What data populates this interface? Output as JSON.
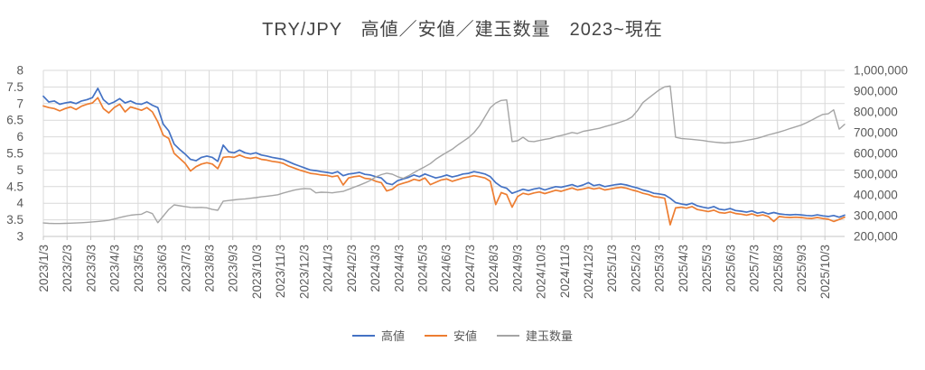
{
  "title": "TRY/JPY　高値／安値／建玉数量　2023~現在",
  "legend": {
    "items": [
      {
        "key": "high",
        "label": "高値",
        "color": "#4472C4"
      },
      {
        "key": "low",
        "label": "安値",
        "color": "#ED7D31"
      },
      {
        "key": "open-interest",
        "label": "建玉数量",
        "color": "#A5A5A5"
      }
    ]
  },
  "colors": {
    "grid": "#D9D9D9",
    "axis_line": "#C6C6C6",
    "axis_text": "#595959",
    "title_text": "#444444",
    "background": "#FFFFFF"
  },
  "chart_data": {
    "type": "line",
    "title": "TRY/JPY　高値／安値／建玉数量　2023~現在",
    "grid": true,
    "legend_position": "bottom",
    "x_axis": {
      "interval": "weekly",
      "start_label": "2023/1/3",
      "labels": [
        "2023/1/3",
        "2023/2/3",
        "2023/3/3",
        "2023/4/3",
        "2023/5/3",
        "2023/6/3",
        "2023/7/3",
        "2023/8/3",
        "2023/9/3",
        "2023/10/3",
        "2023/11/3",
        "2023/12/3",
        "2024/1/3",
        "2024/2/3",
        "2024/3/3",
        "2024/4/3",
        "2024/5/3",
        "2024/6/3",
        "2024/7/3",
        "2024/8/3",
        "2024/9/3",
        "2024/10/3",
        "2024/11/3",
        "2024/12/3",
        "2025/1/3",
        "2025/2/3",
        "2025/3/3",
        "2025/4/3",
        "2025/5/3",
        "2025/6/3",
        "2025/7/3",
        "2025/8/3",
        "2025/9/3",
        "2025/10/3"
      ]
    },
    "y_left": {
      "min": 3,
      "max": 8,
      "ticks": [
        "8",
        "7.5",
        "7",
        "6.5",
        "6",
        "5.5",
        "5",
        "4.5",
        "4",
        "3.5",
        "3"
      ],
      "applies_to": [
        "高値",
        "安値"
      ]
    },
    "y_right": {
      "min": 200000,
      "max": 1000000,
      "ticks": [
        "1,000,000",
        "900,000",
        "800,000",
        "700,000",
        "600,000",
        "500,000",
        "400,000",
        "300,000",
        "200,000"
      ],
      "applies_to": [
        "建玉数量"
      ]
    },
    "series": [
      {
        "name": "高値",
        "key": "high",
        "axis": "left",
        "color": "#4472C4",
        "values": [
          7.22,
          7.05,
          7.08,
          6.98,
          7.02,
          7.05,
          7.0,
          7.08,
          7.12,
          7.18,
          7.46,
          7.12,
          6.98,
          7.05,
          7.15,
          7.02,
          7.08,
          7.0,
          6.98,
          7.05,
          6.95,
          6.88,
          6.38,
          6.18,
          5.78,
          5.62,
          5.48,
          5.32,
          5.28,
          5.38,
          5.42,
          5.38,
          5.26,
          5.75,
          5.55,
          5.52,
          5.6,
          5.52,
          5.48,
          5.52,
          5.45,
          5.42,
          5.38,
          5.35,
          5.32,
          5.25,
          5.18,
          5.12,
          5.06,
          5.0,
          4.98,
          4.95,
          4.93,
          4.9,
          4.95,
          4.83,
          4.88,
          4.9,
          4.93,
          4.87,
          4.85,
          4.8,
          4.76,
          4.6,
          4.56,
          4.68,
          4.73,
          4.78,
          4.85,
          4.8,
          4.88,
          4.82,
          4.76,
          4.8,
          4.85,
          4.79,
          4.83,
          4.88,
          4.9,
          4.95,
          4.92,
          4.88,
          4.8,
          4.62,
          4.5,
          4.45,
          4.3,
          4.36,
          4.42,
          4.38,
          4.43,
          4.46,
          4.4,
          4.45,
          4.5,
          4.48,
          4.52,
          4.56,
          4.5,
          4.55,
          4.62,
          4.53,
          4.56,
          4.5,
          4.53,
          4.56,
          4.58,
          4.55,
          4.5,
          4.46,
          4.4,
          4.36,
          4.3,
          4.28,
          4.25,
          4.15,
          4.02,
          3.98,
          3.95,
          4.0,
          3.92,
          3.88,
          3.85,
          3.9,
          3.82,
          3.8,
          3.84,
          3.78,
          3.76,
          3.73,
          3.77,
          3.7,
          3.73,
          3.68,
          3.72,
          3.68,
          3.66,
          3.65,
          3.66,
          3.65,
          3.63,
          3.62,
          3.65,
          3.62,
          3.6,
          3.63,
          3.58,
          3.64
        ]
      },
      {
        "name": "安値",
        "key": "low",
        "axis": "left",
        "color": "#ED7D31",
        "values": [
          6.93,
          6.88,
          6.85,
          6.78,
          6.85,
          6.9,
          6.82,
          6.92,
          6.98,
          7.02,
          7.18,
          6.85,
          6.72,
          6.88,
          6.98,
          6.75,
          6.9,
          6.85,
          6.8,
          6.88,
          6.75,
          6.45,
          6.05,
          5.95,
          5.5,
          5.35,
          5.2,
          4.97,
          5.1,
          5.18,
          5.22,
          5.18,
          5.04,
          5.38,
          5.4,
          5.38,
          5.45,
          5.38,
          5.35,
          5.38,
          5.32,
          5.3,
          5.26,
          5.24,
          5.2,
          5.12,
          5.06,
          5.0,
          4.95,
          4.9,
          4.88,
          4.85,
          4.84,
          4.8,
          4.83,
          4.55,
          4.76,
          4.8,
          4.82,
          4.75,
          4.73,
          4.66,
          4.62,
          4.37,
          4.42,
          4.55,
          4.6,
          4.65,
          4.72,
          4.68,
          4.76,
          4.56,
          4.63,
          4.7,
          4.73,
          4.66,
          4.71,
          4.76,
          4.79,
          4.83,
          4.8,
          4.76,
          4.66,
          3.96,
          4.32,
          4.26,
          3.88,
          4.2,
          4.3,
          4.26,
          4.31,
          4.34,
          4.29,
          4.34,
          4.39,
          4.36,
          4.41,
          4.46,
          4.4,
          4.43,
          4.47,
          4.43,
          4.46,
          4.4,
          4.43,
          4.46,
          4.48,
          4.45,
          4.4,
          4.36,
          4.3,
          4.26,
          4.2,
          4.18,
          4.15,
          3.35,
          3.86,
          3.88,
          3.85,
          3.9,
          3.81,
          3.78,
          3.75,
          3.79,
          3.72,
          3.7,
          3.74,
          3.69,
          3.67,
          3.64,
          3.68,
          3.62,
          3.65,
          3.6,
          3.45,
          3.6,
          3.58,
          3.57,
          3.58,
          3.57,
          3.55,
          3.54,
          3.57,
          3.54,
          3.52,
          3.45,
          3.51,
          3.58
        ]
      },
      {
        "name": "建玉数量",
        "key": "open-interest",
        "axis": "right",
        "color": "#A5A5A5",
        "values": [
          265000,
          263000,
          262000,
          262000,
          263000,
          264000,
          265000,
          266000,
          268000,
          270000,
          272000,
          275000,
          278000,
          284000,
          291000,
          297000,
          302000,
          305000,
          307000,
          320000,
          310000,
          266000,
          298000,
          330000,
          352000,
          348000,
          344000,
          340000,
          339000,
          340000,
          338000,
          330000,
          326000,
          370000,
          373000,
          376000,
          379000,
          381000,
          384000,
          387000,
          391000,
          394000,
          397000,
          401000,
          409000,
          416000,
          423000,
          428000,
          431000,
          429000,
          410000,
          413000,
          412000,
          410000,
          414000,
          417000,
          427000,
          437000,
          447000,
          458000,
          470000,
          487000,
          498000,
          505000,
          500000,
          488000,
          480000,
          492000,
          508000,
          522000,
          536000,
          551000,
          572000,
          589000,
          605000,
          620000,
          640000,
          658000,
          676000,
          700000,
          732000,
          776000,
          820000,
          843000,
          855000,
          858000,
          657000,
          661000,
          678000,
          659000,
          657000,
          662000,
          668000,
          672000,
          681000,
          686000,
          693000,
          701000,
          696000,
          706000,
          711000,
          716000,
          721000,
          729000,
          736000,
          744000,
          752000,
          761000,
          776000,
          806000,
          845000,
          866000,
          886000,
          906000,
          921000,
          925000,
          678000,
          672000,
          670000,
          668000,
          665000,
          662000,
          658000,
          655000,
          652000,
          650000,
          652000,
          655000,
          658000,
          663000,
          668000,
          673000,
          681000,
          689000,
          696000,
          703000,
          711000,
          720000,
          728000,
          736000,
          748000,
          761000,
          775000,
          788000,
          791000,
          810000,
          717000,
          740000
        ]
      }
    ]
  }
}
